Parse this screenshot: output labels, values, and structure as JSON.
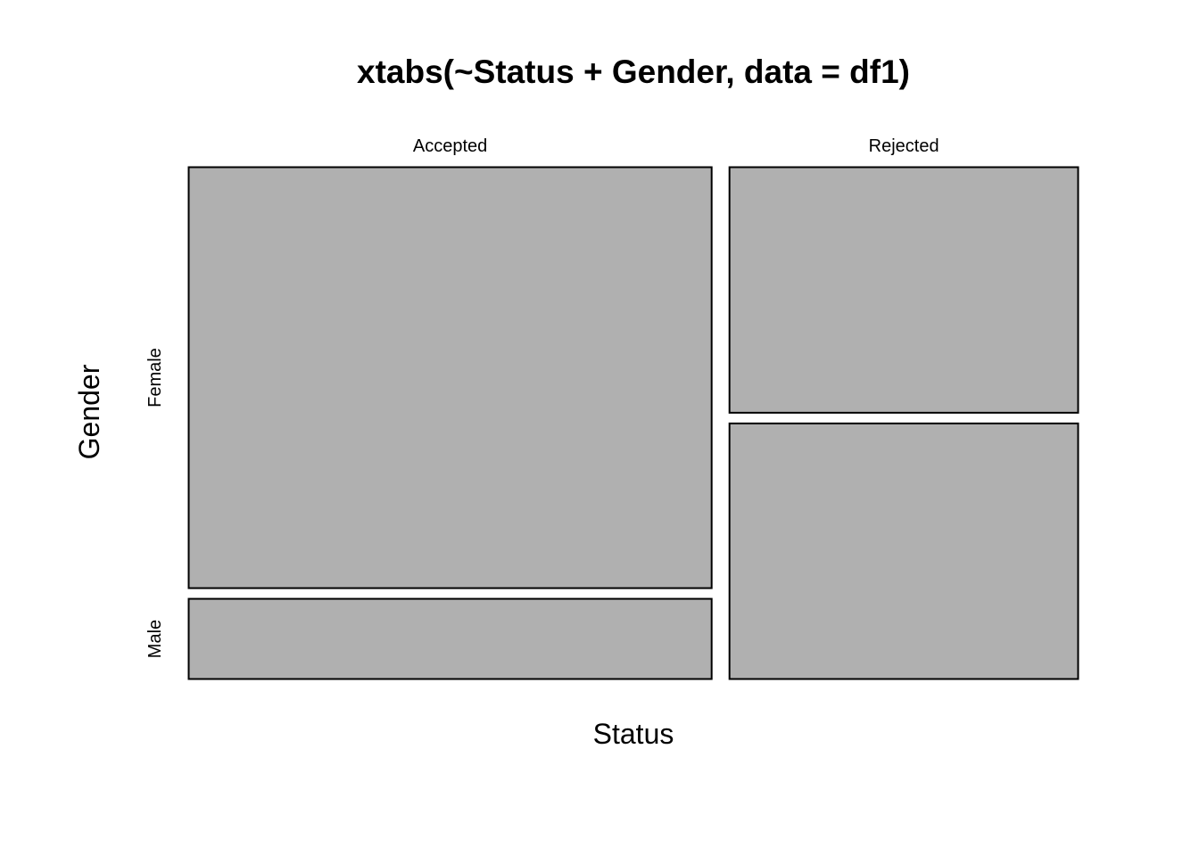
{
  "chart_data": {
    "type": "mosaic",
    "title": "xtabs(~Status + Gender, data = df1)",
    "xlabel": "Status",
    "ylabel": "Gender",
    "x_categories": [
      "Accepted",
      "Rejected"
    ],
    "y_categories": [
      "Female",
      "Male"
    ],
    "column_proportions": [
      0.6,
      0.4
    ],
    "cell_proportions_within_column": [
      {
        "column": "Accepted",
        "Female": 0.84,
        "Male": 0.16
      },
      {
        "column": "Rejected",
        "Female": 0.49,
        "Male": 0.51
      }
    ],
    "fill_color": "#b0b0b0",
    "border_color": "#000000",
    "grid": false,
    "legend": "none"
  }
}
